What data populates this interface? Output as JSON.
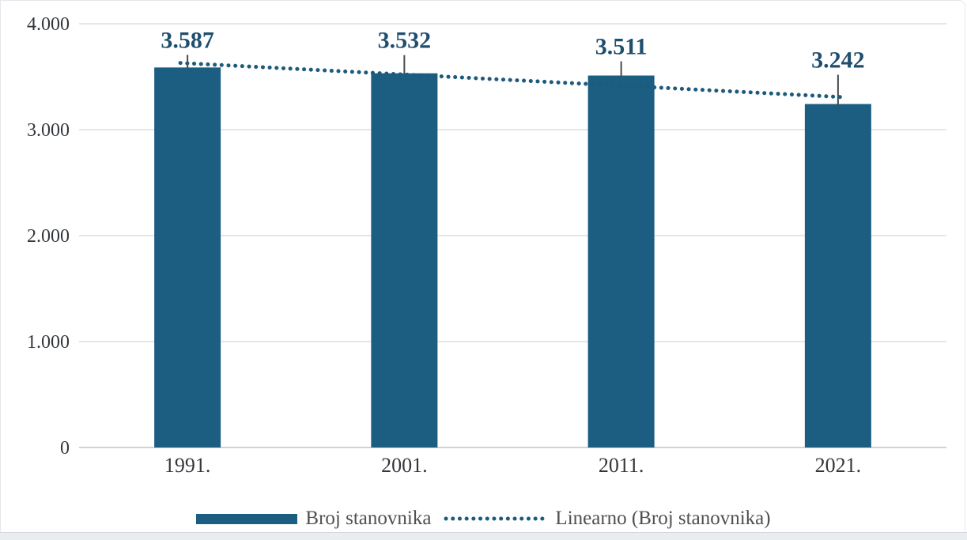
{
  "chart_data": {
    "type": "bar",
    "title": "",
    "xlabel": "",
    "ylabel": "",
    "categories": [
      "1991.",
      "2001.",
      "2011.",
      "2021."
    ],
    "series": [
      {
        "name": "Broj stanovnika",
        "values": [
          3587,
          3532,
          3511,
          3242
        ]
      }
    ],
    "data_labels": [
      "3.587",
      "3.532",
      "3.511",
      "3.242"
    ],
    "trendline": {
      "name": "Linearno (Broj stanovnika)",
      "type": "linear",
      "style": "dotted"
    },
    "ylim": [
      0,
      4000
    ],
    "y_ticks": [
      {
        "value": 0,
        "label": "0"
      },
      {
        "value": 1000,
        "label": "1.000"
      },
      {
        "value": 2000,
        "label": "2.000"
      },
      {
        "value": 3000,
        "label": "3.000"
      },
      {
        "value": 4000,
        "label": "4.000"
      }
    ],
    "grid": true,
    "legend_position": "bottom",
    "colors": {
      "bar": "#1b5e82",
      "trendline": "#1d5a7c",
      "data_label": "#1f4e6e",
      "leader_line": "#4a4a4a",
      "axis_text": "#33373c",
      "gridline": "#e6e6e6",
      "axis_line": "#d2d2d2"
    }
  },
  "legend": {
    "items": [
      {
        "label": "Broj stanovnika",
        "swatch": "bar"
      },
      {
        "label": "Linearno (Broj stanovnika)",
        "swatch": "dotted-line"
      }
    ]
  }
}
